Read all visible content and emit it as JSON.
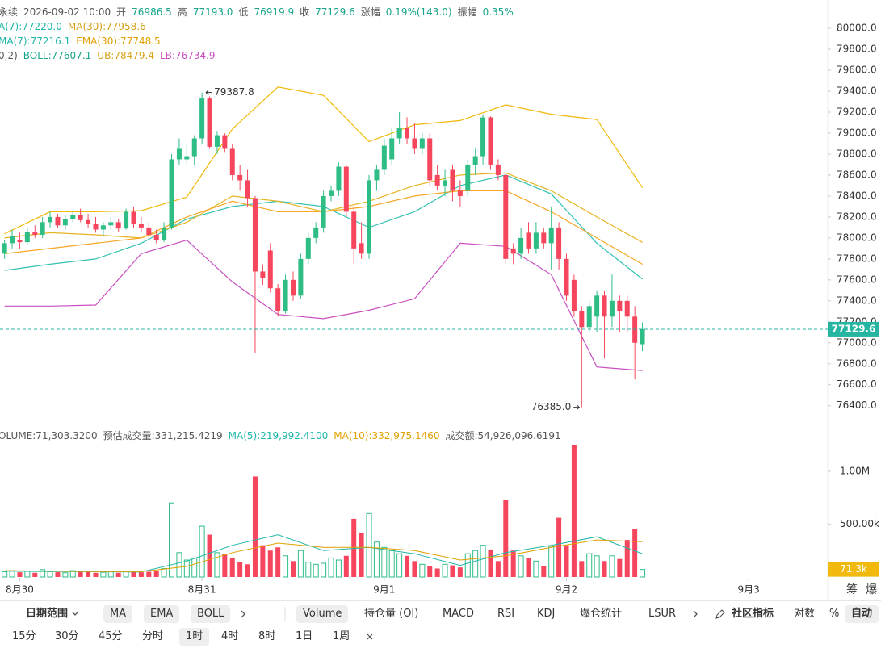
{
  "header": {
    "rows": [
      [
        {
          "text": "永续",
          "color": "#555"
        },
        {
          "text": "2026-09-02 10:00",
          "color": "#555"
        },
        {
          "text": "开",
          "color": "#555"
        },
        {
          "text": "76986.5",
          "color": "#17a589"
        },
        {
          "text": "高",
          "color": "#555"
        },
        {
          "text": "77193.0",
          "color": "#17a589"
        },
        {
          "text": "低",
          "color": "#555"
        },
        {
          "text": "76919.9",
          "color": "#17a589"
        },
        {
          "text": "收",
          "color": "#555"
        },
        {
          "text": "77129.6",
          "color": "#17a589"
        },
        {
          "text": "涨幅",
          "color": "#555"
        },
        {
          "text": "0.19%(143.0)",
          "color": "#17a589"
        },
        {
          "text": "振幅",
          "color": "#555"
        },
        {
          "text": "0.35%",
          "color": "#17a589"
        }
      ],
      [
        {
          "text": "A(7):77220.0",
          "color": "#1db6a8"
        },
        {
          "text": "MA(30):77958.6",
          "color": "#d4a017"
        }
      ],
      [
        {
          "text": "MA(7):77216.1",
          "color": "#1db6a8"
        },
        {
          "text": "EMA(30):77748.5",
          "color": "#e0a100"
        }
      ],
      [
        {
          "text": "0,2)",
          "color": "#555"
        },
        {
          "text": "BOLL:77607.1",
          "color": "#17a589"
        },
        {
          "text": "UB:78479.4",
          "color": "#d9a21b"
        },
        {
          "text": "LB:76734.9",
          "color": "#c94fc0"
        }
      ]
    ],
    "volume": [
      {
        "text": "OLUME:71,303.3200",
        "color": "#555"
      },
      {
        "text": "预估成交量:331,215.4219",
        "color": "#555"
      },
      {
        "text": "MA(5):219,992.4100",
        "color": "#1db6a8"
      },
      {
        "text": "MA(10):332,975.1460",
        "color": "#e0a100"
      },
      {
        "text": "成交额:54,926,096.6191",
        "color": "#555"
      }
    ]
  },
  "chart_data": [
    {
      "type": "candlestick",
      "up_color": "#2ebd85",
      "down_color": "#f6465d",
      "xlim": [
        -0.6,
        108.4
      ],
      "ylim": [
        76190,
        80270
      ],
      "yticks": [
        {
          "value": 76400,
          "label": "76400.0"
        },
        {
          "value": 76600,
          "label": "76600.0"
        },
        {
          "value": 76800,
          "label": "76800.0"
        },
        {
          "value": 77000,
          "label": "77000.0"
        },
        {
          "value": 77200,
          "label": "77200.0"
        },
        {
          "value": 77400,
          "label": "77400.0"
        },
        {
          "value": 77600,
          "label": "77600.0"
        },
        {
          "value": 77800,
          "label": "77800.0"
        },
        {
          "value": 78000,
          "label": "78000.0"
        },
        {
          "value": 78200,
          "label": "78200.0"
        },
        {
          "value": 78400,
          "label": "78400.0"
        },
        {
          "value": 78600,
          "label": "78600.0"
        },
        {
          "value": 78800,
          "label": "78800.0"
        },
        {
          "value": 79000,
          "label": "79000.0"
        },
        {
          "value": 79200,
          "label": "79200.0"
        },
        {
          "value": 79400,
          "label": "79400.0"
        },
        {
          "value": 79600,
          "label": "79600.0"
        },
        {
          "value": 79800,
          "label": "79800.0"
        },
        {
          "value": 80000,
          "label": "80000.0"
        }
      ],
      "x": [
        0,
        1,
        2,
        3,
        4,
        5,
        6,
        7,
        8,
        9,
        10,
        11,
        12,
        13,
        14,
        15,
        16,
        17,
        18,
        19,
        20,
        21,
        22,
        23,
        24,
        25,
        26,
        27,
        28,
        29,
        30,
        31,
        32,
        33,
        34,
        35,
        36,
        37,
        38,
        39,
        40,
        41,
        42,
        43,
        44,
        45,
        46,
        47,
        48,
        49,
        50,
        51,
        52,
        53,
        54,
        55,
        56,
        57,
        58,
        59,
        60,
        61,
        62,
        63,
        64,
        65,
        66,
        67,
        68,
        69,
        70,
        71,
        72,
        73,
        74,
        75,
        76,
        77,
        78,
        79,
        80,
        81,
        82,
        83,
        84
      ],
      "open": [
        77850,
        77950,
        77980,
        77960,
        78060,
        78030,
        78150,
        78200,
        78120,
        78180,
        78220,
        78170,
        78130,
        78080,
        78120,
        78150,
        78090,
        78250,
        78130,
        78100,
        78030,
        77980,
        78100,
        78750,
        78750,
        78780,
        78950,
        79330,
        78870,
        78980,
        78850,
        78600,
        78550,
        78380,
        77680,
        77880,
        77520,
        77300,
        77600,
        77450,
        77800,
        78000,
        78100,
        78400,
        78450,
        78680,
        78250,
        77950,
        77850,
        78550,
        78650,
        78750,
        78950,
        79050,
        78950,
        78850,
        78950,
        78600,
        78500,
        78650,
        78450,
        78450,
        78700,
        78780,
        79150,
        78700,
        78600,
        77900,
        77850,
        78050,
        77900,
        78050,
        77950,
        78100,
        77800,
        77600,
        77300,
        77150,
        77250,
        77450,
        77250,
        77400,
        77400,
        77250,
        76986.5
      ],
      "high": [
        77980,
        78080,
        78050,
        78100,
        78120,
        78200,
        78250,
        78230,
        78220,
        78260,
        78280,
        78230,
        78200,
        78150,
        78200,
        78180,
        78280,
        78300,
        78200,
        78150,
        78080,
        78150,
        78800,
        78950,
        78900,
        78980,
        79387.8,
        79350,
        79020,
        79000,
        78900,
        78700,
        78650,
        78400,
        77750,
        77950,
        77560,
        77650,
        77680,
        77850,
        78050,
        78150,
        78450,
        78500,
        78720,
        78700,
        78300,
        78150,
        78600,
        78700,
        78950,
        79050,
        79200,
        79150,
        79100,
        79000,
        79000,
        78700,
        78650,
        78700,
        78550,
        78750,
        78850,
        79180,
        79160,
        78750,
        78620,
        77950,
        78100,
        78150,
        78150,
        78100,
        78300,
        78150,
        77850,
        77650,
        77350,
        77400,
        77500,
        77500,
        77650,
        77450,
        77450,
        77350,
        77193
      ],
      "low": [
        77800,
        77900,
        77900,
        77940,
        78000,
        78000,
        78100,
        78100,
        78080,
        78150,
        78150,
        78100,
        78050,
        78020,
        78080,
        78060,
        78080,
        78100,
        78050,
        78000,
        77950,
        77960,
        78080,
        78700,
        78700,
        78700,
        78900,
        78850,
        78800,
        78820,
        78550,
        78450,
        78300,
        76900,
        77550,
        77480,
        77250,
        77280,
        77400,
        77420,
        77750,
        77950,
        78050,
        78350,
        78400,
        78200,
        77750,
        77800,
        77800,
        78450,
        78600,
        78700,
        78900,
        78900,
        78800,
        78800,
        78500,
        78450,
        78400,
        78350,
        78300,
        78400,
        78600,
        78700,
        78650,
        78550,
        77750,
        77750,
        77800,
        77850,
        77850,
        77900,
        77700,
        77700,
        77400,
        77250,
        76385,
        77100,
        77100,
        76850,
        77150,
        77100,
        77100,
        76650,
        76919.9
      ],
      "close": [
        77950,
        78020,
        77960,
        78060,
        78030,
        78150,
        78200,
        78120,
        78180,
        78220,
        78170,
        78130,
        78080,
        78120,
        78150,
        78090,
        78250,
        78130,
        78100,
        78030,
        77980,
        78100,
        78750,
        78850,
        78780,
        78950,
        79330,
        78870,
        78980,
        78850,
        78600,
        78550,
        78380,
        77680,
        77620,
        77520,
        77300,
        77600,
        77450,
        77800,
        78000,
        78100,
        78400,
        78450,
        78680,
        78250,
        77900,
        77850,
        78550,
        78650,
        78880,
        78950,
        79050,
        78950,
        78850,
        78950,
        78550,
        78500,
        78550,
        78450,
        78400,
        78700,
        78780,
        79150,
        78700,
        78600,
        77800,
        77850,
        78000,
        77900,
        78050,
        77950,
        78100,
        77800,
        77450,
        77300,
        77150,
        77350,
        77450,
        77250,
        77400,
        77300,
        77250,
        77000,
        77129.6
      ],
      "overlays": [
        {
          "color": "#f0b90b",
          "x": [
            0,
            6,
            12,
            18,
            24,
            30,
            36,
            42,
            48,
            54,
            60,
            66,
            72,
            78,
            84
          ],
          "values": [
            78040,
            78250,
            78250,
            78260,
            78390,
            79040,
            79440,
            79360,
            78920,
            79080,
            79120,
            79270,
            79180,
            79130,
            78479.4
          ]
        },
        {
          "color": "#c94fc0",
          "x": [
            0,
            6,
            12,
            18,
            24,
            30,
            36,
            42,
            48,
            54,
            60,
            66,
            72,
            78,
            84
          ],
          "values": [
            77350,
            77350,
            77360,
            77850,
            77980,
            77580,
            77270,
            77230,
            77310,
            77420,
            77950,
            77920,
            77650,
            76770,
            76734.9
          ]
        },
        {
          "color": "#33c2b2",
          "x": [
            0,
            6,
            12,
            18,
            24,
            30,
            36,
            42,
            48,
            54,
            60,
            66,
            72,
            78,
            84
          ],
          "values": [
            77690,
            77750,
            77800,
            77950,
            78180,
            78300,
            78350,
            78300,
            78100,
            78250,
            78500,
            78600,
            78420,
            77950,
            77607.1
          ]
        },
        {
          "color": "#e6b422",
          "x": [
            0,
            6,
            12,
            18,
            24,
            30,
            36,
            42,
            48,
            54,
            60,
            66,
            72,
            78,
            84
          ],
          "values": [
            78000,
            78050,
            78030,
            78000,
            78150,
            78400,
            78350,
            78250,
            78350,
            78500,
            78600,
            78620,
            78450,
            78200,
            77958.6
          ]
        },
        {
          "color": "#f5a623",
          "x": [
            0,
            6,
            12,
            18,
            24,
            30,
            36,
            42,
            48,
            54,
            60,
            66,
            72,
            78,
            84
          ],
          "values": [
            77850,
            77900,
            77950,
            78000,
            78200,
            78350,
            78250,
            78250,
            78300,
            78400,
            78450,
            78450,
            78250,
            78000,
            77748.5
          ]
        }
      ],
      "last_price": 77129.6,
      "annotations": [
        {
          "x": 26,
          "value": 79387.8
        },
        {
          "x": 76,
          "value": 76385,
          "label": "76385.0"
        }
      ]
    },
    {
      "type": "bar",
      "xlim": [
        -0.6,
        108.4
      ],
      "ylim": [
        0,
        1350000
      ],
      "yticks": [
        {
          "value": 500000,
          "label": "500.00k"
        },
        {
          "value": 1000000,
          "label": "1.00M"
        }
      ],
      "xticks": [
        {
          "value": 2,
          "label": "8月30"
        },
        {
          "value": 26,
          "label": "8月31"
        },
        {
          "value": 50,
          "label": "9月1"
        },
        {
          "value": 74,
          "label": "9月2"
        },
        {
          "value": 98,
          "label": "9月3"
        }
      ],
      "x": [
        0,
        1,
        2,
        3,
        4,
        5,
        6,
        7,
        8,
        9,
        10,
        11,
        12,
        13,
        14,
        15,
        16,
        17,
        18,
        19,
        20,
        21,
        22,
        23,
        24,
        25,
        26,
        27,
        28,
        29,
        30,
        31,
        32,
        33,
        34,
        35,
        36,
        37,
        38,
        39,
        40,
        41,
        42,
        43,
        44,
        45,
        46,
        47,
        48,
        49,
        50,
        51,
        52,
        53,
        54,
        55,
        56,
        57,
        58,
        59,
        60,
        61,
        62,
        63,
        64,
        65,
        66,
        67,
        68,
        69,
        70,
        71,
        72,
        73,
        74,
        75,
        76,
        77,
        78,
        79,
        80,
        81,
        82,
        83,
        84
      ],
      "values": [
        50000,
        60000,
        45000,
        55000,
        40000,
        70000,
        50000,
        45000,
        40000,
        60000,
        50000,
        55000,
        40000,
        45000,
        50000,
        40000,
        55000,
        60000,
        45000,
        50000,
        55000,
        80000,
        700000,
        230000,
        160000,
        180000,
        480000,
        400000,
        230000,
        220000,
        180000,
        140000,
        120000,
        950000,
        300000,
        250000,
        280000,
        200000,
        150000,
        250000,
        140000,
        120000,
        130000,
        180000,
        160000,
        200000,
        550000,
        420000,
        600000,
        330000,
        280000,
        250000,
        220000,
        200000,
        150000,
        120000,
        100000,
        80000,
        120000,
        110000,
        90000,
        220000,
        250000,
        300000,
        260000,
        150000,
        730000,
        250000,
        200000,
        180000,
        150000,
        100000,
        290000,
        560000,
        300000,
        1250000,
        150000,
        220000,
        200000,
        150000,
        200000,
        170000,
        350000,
        450000,
        71303.32
      ],
      "overlays": [
        {
          "color": "#1db6a8",
          "x": [
            0,
            6,
            12,
            18,
            24,
            30,
            36,
            42,
            48,
            54,
            60,
            66,
            72,
            78,
            84
          ],
          "values": [
            55000,
            52000,
            50000,
            48000,
            150000,
            300000,
            400000,
            250000,
            280000,
            220000,
            110000,
            230000,
            300000,
            380000,
            219992.41
          ]
        },
        {
          "color": "#e0a100",
          "x": [
            0,
            6,
            12,
            18,
            24,
            30,
            36,
            42,
            48,
            54,
            60,
            66,
            72,
            78,
            84
          ],
          "values": [
            60000,
            55000,
            52000,
            50000,
            100000,
            230000,
            320000,
            280000,
            280000,
            250000,
            160000,
            200000,
            280000,
            350000,
            332975.146
          ]
        }
      ],
      "last_label": {
        "value": 71303.32,
        "label": "71.3k"
      }
    }
  ],
  "right_tools": [
    "筹",
    "爆"
  ],
  "toolbar": {
    "row1": [
      "日期范围",
      "MA",
      "EMA",
      "BOLL",
      "Volume",
      "持仓量 (OI)",
      "MACD",
      "RSI",
      "KDJ",
      "爆仓统计",
      "LSUR",
      "社区指标",
      "对数",
      "%",
      "自动"
    ],
    "row2": [
      "15分",
      "30分",
      "45分",
      "分时",
      "1时",
      "4时",
      "8时",
      "1日",
      "1周"
    ]
  }
}
